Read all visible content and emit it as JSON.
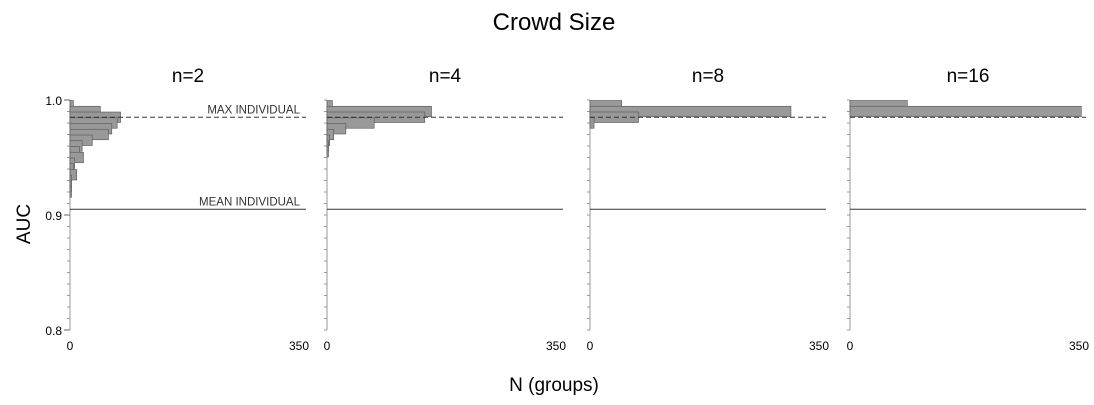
{
  "chart_data": {
    "type": "bar",
    "orientation": "horizontal",
    "title": "Crowd Size",
    "xlabel": "N (groups)",
    "ylabel": "AUC",
    "ylim": [
      0.8,
      1.0
    ],
    "yticks": [
      "0.8",
      "0.9",
      "1.0"
    ],
    "xlim": [
      0,
      350
    ],
    "xticks": [
      "0",
      "350"
    ],
    "bin_width": 0.01,
    "reference_lines": [
      {
        "label": "MAX INDIVIDUAL",
        "y": 0.985,
        "style": "dashed"
      },
      {
        "label": "MEAN INDIVIDUAL",
        "y": 0.905,
        "style": "solid"
      }
    ],
    "bar_color": "#999999",
    "panels": [
      {
        "title": "n=2",
        "bins": [
          {
            "y": 0.995,
            "count": 5
          },
          {
            "y": 0.99,
            "count": 45
          },
          {
            "y": 0.985,
            "count": 75
          },
          {
            "y": 0.98,
            "count": 70
          },
          {
            "y": 0.975,
            "count": 62
          },
          {
            "y": 0.97,
            "count": 57
          },
          {
            "y": 0.965,
            "count": 33
          },
          {
            "y": 0.96,
            "count": 18
          },
          {
            "y": 0.955,
            "count": 14
          },
          {
            "y": 0.95,
            "count": 20
          },
          {
            "y": 0.945,
            "count": 7
          },
          {
            "y": 0.94,
            "count": 5
          },
          {
            "y": 0.935,
            "count": 10
          },
          {
            "y": 0.93,
            "count": 2
          },
          {
            "y": 0.925,
            "count": 1
          },
          {
            "y": 0.92,
            "count": 1
          }
        ]
      },
      {
        "title": "n=4",
        "bins": [
          {
            "y": 0.995,
            "count": 8
          },
          {
            "y": 0.99,
            "count": 155
          },
          {
            "y": 0.985,
            "count": 145
          },
          {
            "y": 0.98,
            "count": 70
          },
          {
            "y": 0.975,
            "count": 28
          },
          {
            "y": 0.97,
            "count": 10
          },
          {
            "y": 0.965,
            "count": 4
          },
          {
            "y": 0.96,
            "count": 2
          },
          {
            "y": 0.955,
            "count": 1
          }
        ]
      },
      {
        "title": "n=8",
        "bins": [
          {
            "y": 0.995,
            "count": 47
          },
          {
            "y": 0.99,
            "count": 298
          },
          {
            "y": 0.985,
            "count": 72
          },
          {
            "y": 0.98,
            "count": 6
          }
        ]
      },
      {
        "title": "n=16",
        "bins": [
          {
            "y": 0.995,
            "count": 85
          },
          {
            "y": 0.99,
            "count": 343
          }
        ]
      }
    ]
  }
}
